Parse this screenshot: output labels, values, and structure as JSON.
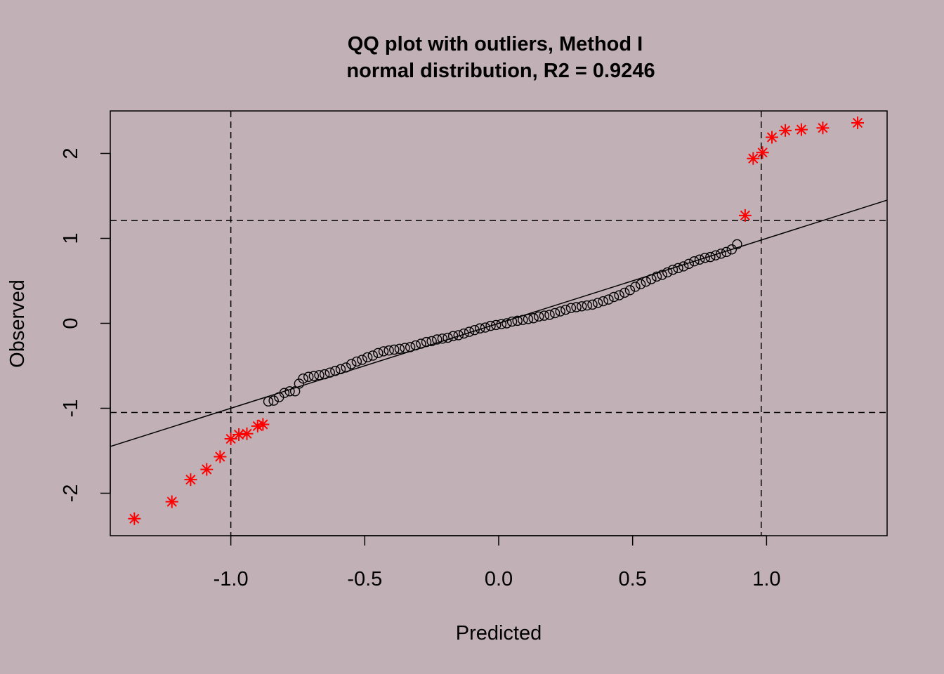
{
  "chart_data": {
    "type": "scatter",
    "title": "QQ plot with outliers, Method I",
    "subtitle": "normal distribution, R2 = 0.9246",
    "xlabel": "Predicted",
    "ylabel": "Observed",
    "xlim": [
      -1.45,
      1.45
    ],
    "ylim": [
      -2.5,
      2.5
    ],
    "x_ticks": [
      -1.0,
      -0.5,
      0.0,
      0.5,
      1.0
    ],
    "x_tick_labels": [
      "-1.0",
      "-0.5",
      "0.0",
      "0.5",
      "1.0"
    ],
    "y_ticks": [
      -2,
      -1,
      0,
      1,
      2
    ],
    "y_tick_labels": [
      "-2",
      "-1",
      "0",
      "1",
      "2"
    ],
    "fit_line": {
      "slope": 1.0,
      "intercept": 0.0
    },
    "hlines": [
      1.21,
      -1.05
    ],
    "vlines": [
      -1.0,
      0.98
    ],
    "colors": {
      "background": "#c1b1b7",
      "normal_point": "#000000",
      "outlier_point": "#ff0000"
    },
    "series": [
      {
        "marker": "circle",
        "points": [
          [
            -0.86,
            -0.92
          ],
          [
            -0.84,
            -0.91
          ],
          [
            -0.82,
            -0.87
          ],
          [
            -0.8,
            -0.82
          ],
          [
            -0.78,
            -0.8
          ],
          [
            -0.76,
            -0.8
          ],
          [
            -0.745,
            -0.71
          ],
          [
            -0.73,
            -0.65
          ],
          [
            -0.71,
            -0.63
          ],
          [
            -0.69,
            -0.62
          ],
          [
            -0.67,
            -0.61
          ],
          [
            -0.65,
            -0.6
          ],
          [
            -0.63,
            -0.58
          ],
          [
            -0.61,
            -0.56
          ],
          [
            -0.59,
            -0.54
          ],
          [
            -0.57,
            -0.52
          ],
          [
            -0.55,
            -0.48
          ],
          [
            -0.53,
            -0.45
          ],
          [
            -0.51,
            -0.43
          ],
          [
            -0.49,
            -0.4
          ],
          [
            -0.47,
            -0.38
          ],
          [
            -0.45,
            -0.35
          ],
          [
            -0.43,
            -0.33
          ],
          [
            -0.41,
            -0.32
          ],
          [
            -0.39,
            -0.31
          ],
          [
            -0.37,
            -0.3
          ],
          [
            -0.35,
            -0.29
          ],
          [
            -0.33,
            -0.28
          ],
          [
            -0.31,
            -0.26
          ],
          [
            -0.29,
            -0.24
          ],
          [
            -0.27,
            -0.22
          ],
          [
            -0.25,
            -0.21
          ],
          [
            -0.23,
            -0.19
          ],
          [
            -0.21,
            -0.18
          ],
          [
            -0.19,
            -0.17
          ],
          [
            -0.17,
            -0.15
          ],
          [
            -0.15,
            -0.14
          ],
          [
            -0.13,
            -0.12
          ],
          [
            -0.11,
            -0.1
          ],
          [
            -0.09,
            -0.08
          ],
          [
            -0.07,
            -0.06
          ],
          [
            -0.05,
            -0.05
          ],
          [
            -0.03,
            -0.03
          ],
          [
            -0.01,
            -0.02
          ],
          [
            0.01,
            -0.01
          ],
          [
            0.03,
            0.0
          ],
          [
            0.05,
            0.02
          ],
          [
            0.07,
            0.03
          ],
          [
            0.09,
            0.04
          ],
          [
            0.11,
            0.05
          ],
          [
            0.13,
            0.06
          ],
          [
            0.15,
            0.08
          ],
          [
            0.17,
            0.09
          ],
          [
            0.19,
            0.1
          ],
          [
            0.21,
            0.12
          ],
          [
            0.23,
            0.14
          ],
          [
            0.25,
            0.16
          ],
          [
            0.27,
            0.18
          ],
          [
            0.29,
            0.19
          ],
          [
            0.31,
            0.2
          ],
          [
            0.33,
            0.21
          ],
          [
            0.35,
            0.22
          ],
          [
            0.37,
            0.24
          ],
          [
            0.39,
            0.26
          ],
          [
            0.41,
            0.28
          ],
          [
            0.43,
            0.31
          ],
          [
            0.45,
            0.33
          ],
          [
            0.47,
            0.36
          ],
          [
            0.49,
            0.39
          ],
          [
            0.51,
            0.43
          ],
          [
            0.53,
            0.46
          ],
          [
            0.55,
            0.49
          ],
          [
            0.57,
            0.52
          ],
          [
            0.59,
            0.55
          ],
          [
            0.61,
            0.57
          ],
          [
            0.63,
            0.6
          ],
          [
            0.65,
            0.63
          ],
          [
            0.67,
            0.65
          ],
          [
            0.69,
            0.67
          ],
          [
            0.71,
            0.7
          ],
          [
            0.73,
            0.73
          ],
          [
            0.75,
            0.75
          ],
          [
            0.77,
            0.77
          ],
          [
            0.79,
            0.78
          ],
          [
            0.81,
            0.8
          ],
          [
            0.83,
            0.82
          ],
          [
            0.85,
            0.84
          ],
          [
            0.87,
            0.87
          ],
          [
            0.89,
            0.93
          ]
        ]
      },
      {
        "marker": "star",
        "points": [
          [
            -1.36,
            -2.3
          ],
          [
            -1.22,
            -2.1
          ],
          [
            -1.15,
            -1.84
          ],
          [
            -1.09,
            -1.72
          ],
          [
            -1.04,
            -1.57
          ],
          [
            -1.0,
            -1.36
          ],
          [
            -0.97,
            -1.31
          ],
          [
            -0.94,
            -1.3
          ],
          [
            -0.9,
            -1.21
          ],
          [
            -0.88,
            -1.19
          ],
          [
            0.92,
            1.27
          ],
          [
            0.95,
            1.94
          ],
          [
            0.985,
            2.01
          ],
          [
            1.02,
            2.19
          ],
          [
            1.07,
            2.27
          ],
          [
            1.13,
            2.28
          ],
          [
            1.21,
            2.3
          ],
          [
            1.34,
            2.36
          ]
        ]
      }
    ]
  }
}
